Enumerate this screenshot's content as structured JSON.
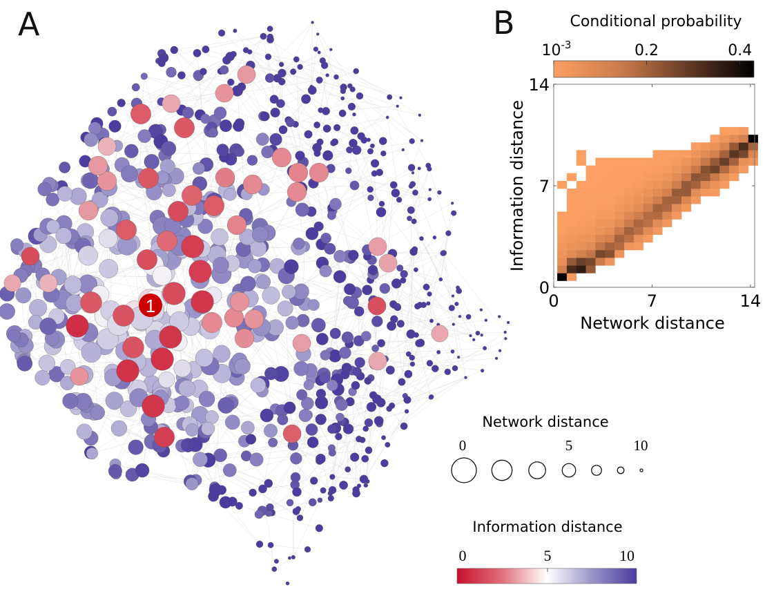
{
  "panels": {
    "a": {
      "letter": "A"
    },
    "b": {
      "letter": "B"
    }
  },
  "network": {
    "highlight_node_label": "1",
    "node_count_approx": 900,
    "colors": {
      "edge": "#d9d9d9",
      "node_stroke": "#555555",
      "highlight_fill": "#cc0000"
    },
    "size_legend": {
      "title": "Network distance",
      "tick_labels": [
        "0",
        "5",
        "10"
      ],
      "tick_values": [
        0,
        5,
        10
      ],
      "sample_distances": [
        0,
        2,
        3.5,
        5,
        6.5,
        8,
        10
      ]
    },
    "color_legend": {
      "title": "Information distance",
      "tick_labels": [
        "0",
        "5",
        "10"
      ],
      "range": [
        0,
        10
      ],
      "colors": {
        "low": "#c8102e",
        "mid": "#ffffff",
        "high": "#4b3c9e"
      }
    }
  },
  "chart_data": {
    "type": "heatmap",
    "title": "Conditional probability",
    "xlabel": "Network distance",
    "ylabel": "Information distance",
    "xlim": [
      0,
      14.3
    ],
    "ylim": [
      0,
      14
    ],
    "x_ticks": [
      0,
      7,
      14
    ],
    "x_tick_labels": [
      "0",
      "7",
      "14"
    ],
    "y_ticks": [
      0,
      7,
      14
    ],
    "y_tick_labels": [
      "0",
      "7",
      "14"
    ],
    "colorbar": {
      "tick_labels": [
        "10^-3",
        "0.2",
        "0.4"
      ],
      "tick_values": [
        0.001,
        0.2,
        0.4
      ],
      "range": [
        0.001,
        0.43
      ],
      "colors": {
        "low": "#fc9f63",
        "high": "#000000"
      },
      "placement": "top"
    },
    "x_bin_width": 0.68,
    "y_bin_width": 0.53,
    "columns": [
      {
        "col": 0,
        "rows": [
          [
            0,
            0.43
          ],
          [
            1,
            0.12
          ],
          [
            2,
            0.06
          ],
          [
            3,
            0.04
          ],
          [
            4,
            0.03
          ],
          [
            5,
            0.02
          ],
          [
            6,
            0.01
          ],
          [
            7,
            0.005
          ],
          [
            8,
            0.003
          ],
          [
            12,
            0.002
          ]
        ]
      },
      {
        "col": 1,
        "rows": [
          [
            0,
            0.02
          ],
          [
            1,
            0.33
          ],
          [
            2,
            0.22
          ],
          [
            3,
            0.08
          ],
          [
            4,
            0.05
          ],
          [
            5,
            0.03
          ],
          [
            6,
            0.02
          ],
          [
            7,
            0.01
          ],
          [
            8,
            0.006
          ],
          [
            9,
            0.004
          ],
          [
            10,
            0.003
          ],
          [
            11,
            0.002
          ],
          [
            13,
            0.002
          ]
        ]
      },
      {
        "col": 2,
        "rows": [
          [
            1,
            0.36
          ],
          [
            2,
            0.28
          ],
          [
            3,
            0.12
          ],
          [
            4,
            0.06
          ],
          [
            5,
            0.04
          ],
          [
            6,
            0.025
          ],
          [
            7,
            0.015
          ],
          [
            8,
            0.01
          ],
          [
            9,
            0.006
          ],
          [
            10,
            0.004
          ],
          [
            11,
            0.003
          ],
          [
            12,
            0.002
          ],
          [
            15,
            0.002
          ],
          [
            16,
            0.002
          ]
        ]
      },
      {
        "col": 3,
        "rows": [
          [
            1,
            0.22
          ],
          [
            2,
            0.26
          ],
          [
            3,
            0.16
          ],
          [
            4,
            0.08
          ],
          [
            5,
            0.05
          ],
          [
            6,
            0.03
          ],
          [
            7,
            0.02
          ],
          [
            8,
            0.012
          ],
          [
            9,
            0.008
          ],
          [
            10,
            0.005
          ],
          [
            11,
            0.003
          ],
          [
            12,
            0.002
          ],
          [
            13,
            0.002
          ],
          [
            14,
            0.002
          ]
        ]
      },
      {
        "col": 4,
        "rows": [
          [
            2,
            0.14
          ],
          [
            3,
            0.26
          ],
          [
            4,
            0.16
          ],
          [
            5,
            0.09
          ],
          [
            6,
            0.05
          ],
          [
            7,
            0.035
          ],
          [
            8,
            0.02
          ],
          [
            9,
            0.012
          ],
          [
            10,
            0.008
          ],
          [
            11,
            0.005
          ],
          [
            12,
            0.003
          ],
          [
            13,
            0.002
          ],
          [
            14,
            0.002
          ],
          [
            15,
            0.002
          ]
        ]
      },
      {
        "col": 5,
        "rows": [
          [
            2,
            0.04
          ],
          [
            3,
            0.24
          ],
          [
            4,
            0.2
          ],
          [
            5,
            0.12
          ],
          [
            6,
            0.07
          ],
          [
            7,
            0.04
          ],
          [
            8,
            0.025
          ],
          [
            9,
            0.015
          ],
          [
            10,
            0.009
          ],
          [
            11,
            0.006
          ],
          [
            12,
            0.004
          ],
          [
            13,
            0.003
          ],
          [
            14,
            0.002
          ],
          [
            15,
            0.002
          ]
        ]
      },
      {
        "col": 6,
        "rows": [
          [
            3,
            0.05
          ],
          [
            4,
            0.18
          ],
          [
            5,
            0.2
          ],
          [
            6,
            0.14
          ],
          [
            7,
            0.08
          ],
          [
            8,
            0.05
          ],
          [
            9,
            0.03
          ],
          [
            10,
            0.018
          ],
          [
            11,
            0.01
          ],
          [
            12,
            0.006
          ],
          [
            13,
            0.004
          ],
          [
            14,
            0.003
          ],
          [
            15,
            0.002
          ]
        ]
      },
      {
        "col": 7,
        "rows": [
          [
            4,
            0.04
          ],
          [
            5,
            0.17
          ],
          [
            6,
            0.2
          ],
          [
            7,
            0.14
          ],
          [
            8,
            0.09
          ],
          [
            9,
            0.05
          ],
          [
            10,
            0.03
          ],
          [
            11,
            0.018
          ],
          [
            12,
            0.01
          ],
          [
            13,
            0.006
          ],
          [
            14,
            0.004
          ],
          [
            15,
            0.002
          ]
        ]
      },
      {
        "col": 8,
        "rows": [
          [
            4,
            0.02
          ],
          [
            5,
            0.06
          ],
          [
            6,
            0.17
          ],
          [
            7,
            0.19
          ],
          [
            8,
            0.13
          ],
          [
            9,
            0.08
          ],
          [
            10,
            0.05
          ],
          [
            11,
            0.03
          ],
          [
            12,
            0.016
          ],
          [
            13,
            0.009
          ],
          [
            14,
            0.005
          ],
          [
            15,
            0.002
          ]
        ]
      },
      {
        "col": 9,
        "rows": [
          [
            5,
            0.02
          ],
          [
            6,
            0.08
          ],
          [
            7,
            0.17
          ],
          [
            8,
            0.18
          ],
          [
            9,
            0.13
          ],
          [
            10,
            0.08
          ],
          [
            11,
            0.05
          ],
          [
            12,
            0.03
          ],
          [
            13,
            0.015
          ],
          [
            14,
            0.008
          ],
          [
            15,
            0.003
          ]
        ]
      },
      {
        "col": 10,
        "rows": [
          [
            6,
            0.03
          ],
          [
            7,
            0.08
          ],
          [
            8,
            0.18
          ],
          [
            9,
            0.2
          ],
          [
            10,
            0.13
          ],
          [
            11,
            0.08
          ],
          [
            12,
            0.045
          ],
          [
            13,
            0.025
          ],
          [
            14,
            0.012
          ],
          [
            15,
            0.005
          ],
          [
            16,
            0.002
          ]
        ]
      },
      {
        "col": 11,
        "rows": [
          [
            7,
            0.03
          ],
          [
            8,
            0.09
          ],
          [
            9,
            0.19
          ],
          [
            10,
            0.2
          ],
          [
            11,
            0.12
          ],
          [
            12,
            0.07
          ],
          [
            13,
            0.04
          ],
          [
            14,
            0.02
          ],
          [
            15,
            0.008
          ],
          [
            16,
            0.003
          ]
        ]
      },
      {
        "col": 12,
        "rows": [
          [
            8,
            0.03
          ],
          [
            9,
            0.08
          ],
          [
            10,
            0.2
          ],
          [
            11,
            0.22
          ],
          [
            12,
            0.13
          ],
          [
            13,
            0.08
          ],
          [
            14,
            0.04
          ],
          [
            15,
            0.02
          ],
          [
            16,
            0.006
          ]
        ]
      },
      {
        "col": 13,
        "rows": [
          [
            9,
            0.03
          ],
          [
            10,
            0.1
          ],
          [
            11,
            0.22
          ],
          [
            12,
            0.22
          ],
          [
            13,
            0.14
          ],
          [
            14,
            0.08
          ],
          [
            15,
            0.04
          ],
          [
            16,
            0.01
          ]
        ]
      },
      {
        "col": 14,
        "rows": [
          [
            10,
            0.03
          ],
          [
            11,
            0.08
          ],
          [
            12,
            0.2
          ],
          [
            13,
            0.23
          ],
          [
            14,
            0.15
          ],
          [
            15,
            0.08
          ],
          [
            16,
            0.04
          ],
          [
            17,
            0.01
          ]
        ]
      },
      {
        "col": 15,
        "rows": [
          [
            11,
            0.03
          ],
          [
            12,
            0.1
          ],
          [
            13,
            0.22
          ],
          [
            14,
            0.24
          ],
          [
            15,
            0.15
          ],
          [
            16,
            0.08
          ],
          [
            17,
            0.03
          ]
        ]
      },
      {
        "col": 16,
        "rows": [
          [
            11,
            0.02
          ],
          [
            12,
            0.05
          ],
          [
            13,
            0.15
          ],
          [
            14,
            0.27
          ],
          [
            15,
            0.22
          ],
          [
            16,
            0.12
          ],
          [
            17,
            0.05
          ],
          [
            18,
            0.01
          ]
        ]
      },
      {
        "col": 17,
        "rows": [
          [
            12,
            0.02
          ],
          [
            13,
            0.07
          ],
          [
            14,
            0.18
          ],
          [
            15,
            0.28
          ],
          [
            16,
            0.2
          ],
          [
            17,
            0.1
          ],
          [
            18,
            0.04
          ],
          [
            19,
            0.005
          ]
        ]
      },
      {
        "col": 18,
        "rows": [
          [
            13,
            0.02
          ],
          [
            14,
            0.08
          ],
          [
            15,
            0.2
          ],
          [
            16,
            0.3
          ],
          [
            17,
            0.22
          ],
          [
            18,
            0.08
          ],
          [
            19,
            0.01
          ]
        ]
      },
      {
        "col": 19,
        "rows": [
          [
            14,
            0.02
          ],
          [
            15,
            0.06
          ],
          [
            16,
            0.26
          ],
          [
            17,
            0.32
          ],
          [
            18,
            0.12
          ],
          [
            19,
            0.02
          ]
        ]
      },
      {
        "col": 20,
        "rows": [
          [
            15,
            0.04
          ],
          [
            16,
            0.1
          ],
          [
            17,
            0.2
          ],
          [
            18,
            0.43
          ]
        ]
      }
    ]
  }
}
